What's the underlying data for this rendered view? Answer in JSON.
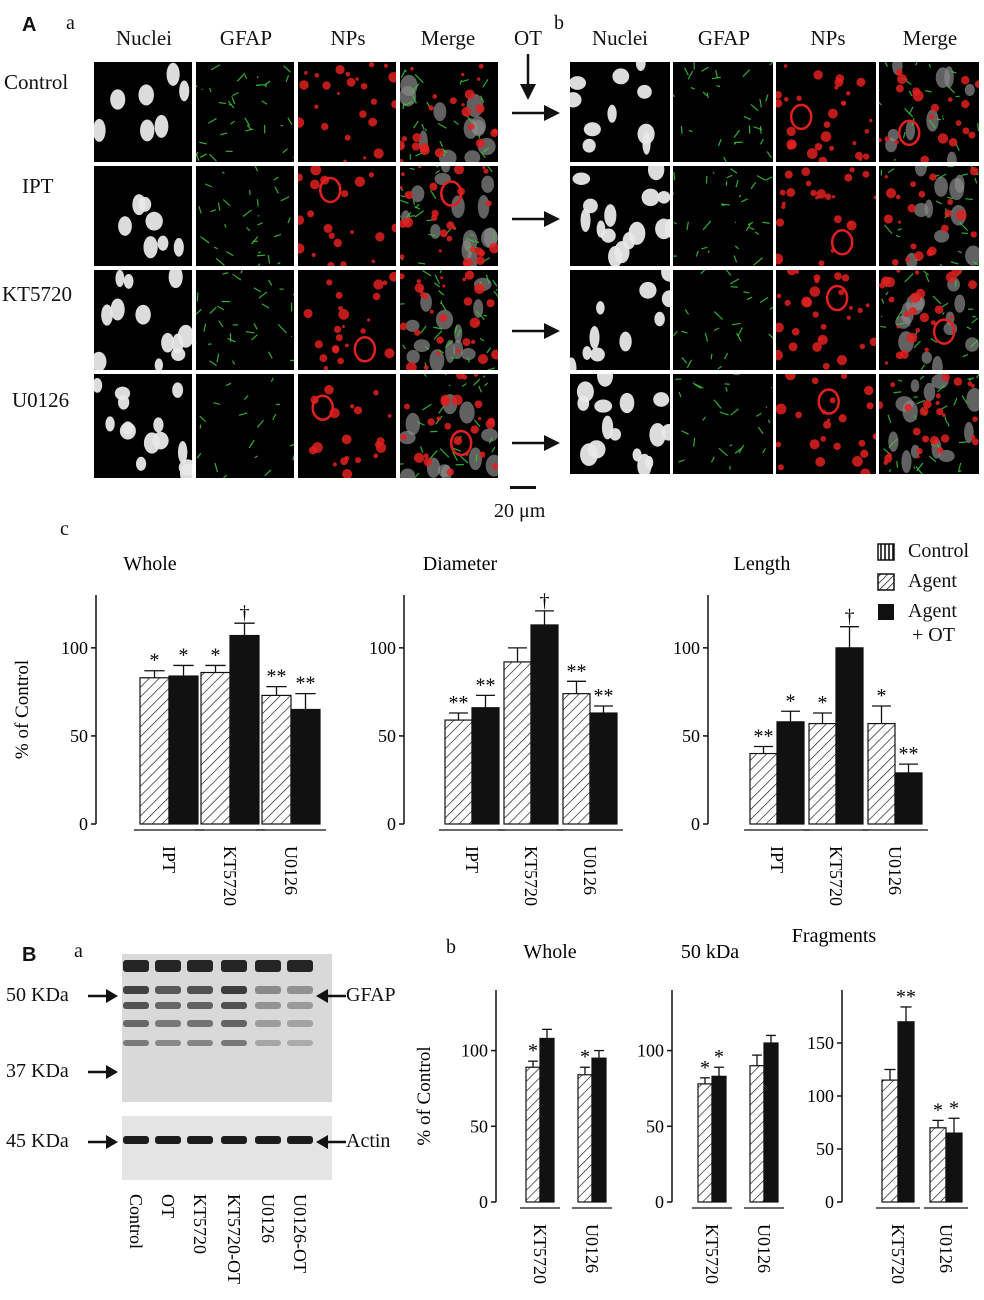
{
  "panelA": {
    "letter": "A",
    "sub_a": "a",
    "sub_b": "b",
    "sub_c": "c",
    "columns": [
      "Nuclei",
      "GFAP",
      "NPs",
      "Merge"
    ],
    "rows": [
      "Control",
      "IPT",
      "KT5720",
      "U0126"
    ],
    "ot_label": "OT",
    "scale_bar": "20 μm"
  },
  "panelB": {
    "letter": "B",
    "sub_a": "a",
    "sub_b": "b",
    "blot_left_labels": [
      "50 KDa",
      "37 KDa",
      "45 KDa"
    ],
    "blot_right_labels": [
      "GFAP",
      "Actin"
    ],
    "lanes": [
      "Control",
      "OT",
      "KT5720",
      "KT5720-OT",
      "U0126",
      "U0126-OT"
    ]
  },
  "legend": {
    "items": [
      "Control",
      "Agent",
      "Agent",
      "+ OT"
    ]
  },
  "colors": {
    "nuclei": "#e8e8e8",
    "gfap": "#39c93a",
    "nps": "#e02020",
    "bar_solid": "#111111"
  },
  "chart_data": [
    {
      "type": "bar",
      "title": "Whole",
      "ylabel": "% of Control",
      "ylim": [
        0,
        130
      ],
      "yticks": [
        0,
        50,
        100
      ],
      "categories": [
        "IPT",
        "KT5720",
        "U0126"
      ],
      "series": [
        {
          "name": "Agent",
          "values": [
            83,
            86,
            73
          ],
          "errors": [
            4,
            4,
            5
          ],
          "marks": [
            "*",
            "*",
            "**"
          ]
        },
        {
          "name": "Agent + OT",
          "values": [
            84,
            107,
            65
          ],
          "errors": [
            6,
            7,
            9
          ],
          "marks": [
            "*",
            "†",
            "**"
          ]
        }
      ]
    },
    {
      "type": "bar",
      "title": "Diameter",
      "ylabel": "",
      "ylim": [
        0,
        130
      ],
      "yticks": [
        0,
        50,
        100
      ],
      "categories": [
        "IPT",
        "KT5720",
        "U0126"
      ],
      "series": [
        {
          "name": "Agent",
          "values": [
            59,
            92,
            74
          ],
          "errors": [
            4,
            8,
            7
          ],
          "marks": [
            "**",
            "",
            "**"
          ]
        },
        {
          "name": "Agent + OT",
          "values": [
            66,
            113,
            63
          ],
          "errors": [
            7,
            8,
            4
          ],
          "marks": [
            "**",
            "†",
            "**"
          ]
        }
      ]
    },
    {
      "type": "bar",
      "title": "Length",
      "ylabel": "",
      "ylim": [
        0,
        130
      ],
      "yticks": [
        0,
        50,
        100
      ],
      "categories": [
        "IPT",
        "KT5720",
        "U0126"
      ],
      "series": [
        {
          "name": "Agent",
          "values": [
            40,
            57,
            57
          ],
          "errors": [
            4,
            6,
            10
          ],
          "marks": [
            "**",
            "*",
            "*"
          ]
        },
        {
          "name": "Agent + OT",
          "values": [
            58,
            100,
            29
          ],
          "errors": [
            6,
            12,
            5
          ],
          "marks": [
            "*",
            "†",
            "**"
          ]
        }
      ]
    },
    {
      "type": "bar",
      "title": "Whole",
      "ylabel": "% of Control",
      "ylim": [
        0,
        140
      ],
      "yticks": [
        0,
        50,
        100
      ],
      "categories": [
        "KT5720",
        "U0126"
      ],
      "series": [
        {
          "name": "Agent",
          "values": [
            89,
            84
          ],
          "errors": [
            4,
            5
          ],
          "marks": [
            "*",
            "*"
          ]
        },
        {
          "name": "Agent + OT",
          "values": [
            108,
            95
          ],
          "errors": [
            6,
            5
          ],
          "marks": [
            "",
            ""
          ]
        }
      ]
    },
    {
      "type": "bar",
      "title": "50 kDa",
      "ylabel": "",
      "ylim": [
        0,
        140
      ],
      "yticks": [
        0,
        50,
        100
      ],
      "categories": [
        "KT5720",
        "U0126"
      ],
      "series": [
        {
          "name": "Agent",
          "values": [
            78,
            90
          ],
          "errors": [
            4,
            7
          ],
          "marks": [
            "*",
            ""
          ]
        },
        {
          "name": "Agent + OT",
          "values": [
            83,
            105
          ],
          "errors": [
            6,
            5
          ],
          "marks": [
            "*",
            ""
          ]
        }
      ]
    },
    {
      "type": "bar",
      "title": "Fragments",
      "ylabel": "",
      "ylim": [
        0,
        200
      ],
      "yticks": [
        0,
        50,
        100,
        150
      ],
      "categories": [
        "KT5720",
        "U0126"
      ],
      "series": [
        {
          "name": "Agent",
          "values": [
            115,
            70
          ],
          "errors": [
            10,
            7
          ],
          "marks": [
            "",
            "*"
          ]
        },
        {
          "name": "Agent + OT",
          "values": [
            170,
            65
          ],
          "errors": [
            14,
            14
          ],
          "marks": [
            "**",
            "*"
          ]
        }
      ]
    }
  ]
}
